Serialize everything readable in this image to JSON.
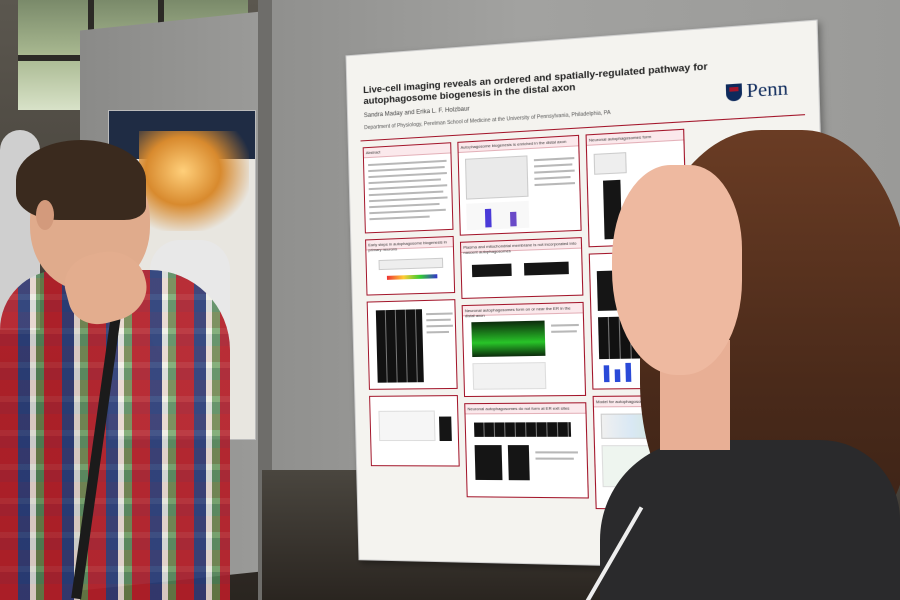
{
  "poster": {
    "title": "Live-cell imaging reveals an ordered and spatially-regulated pathway for autophagosome biogenesis in the distal axon",
    "authors": "Sandra Maday and Erika L. F. Holzbaur",
    "affiliation": "Department of Physiology, Perelman School of Medicine at the University of Pennsylvania, Philadelphia, PA",
    "logo_text": "Penn",
    "panels": [
      {
        "heading": "Abstract"
      },
      {
        "heading": "Autophagosome biogenesis is enriched in the distal axon"
      },
      {
        "heading": "Neuronal autophagosomes form"
      },
      {
        "heading": "Early steps in autophagosome biogenesis in primary neurons"
      },
      {
        "heading": "Plasma and mitochondrial membrane is not incorporated into nascent autophagosomes"
      },
      {
        "heading": "Neuronal autophagosomes form on or near the ER in the distal axon"
      },
      {
        "heading": "Neuronal autophagosomes do not form at ER exit sites"
      },
      {
        "heading": "Model for autophagosome formation in"
      }
    ]
  },
  "colors": {
    "penn_navy": "#0e2a5c",
    "penn_red": "#a3152a"
  }
}
